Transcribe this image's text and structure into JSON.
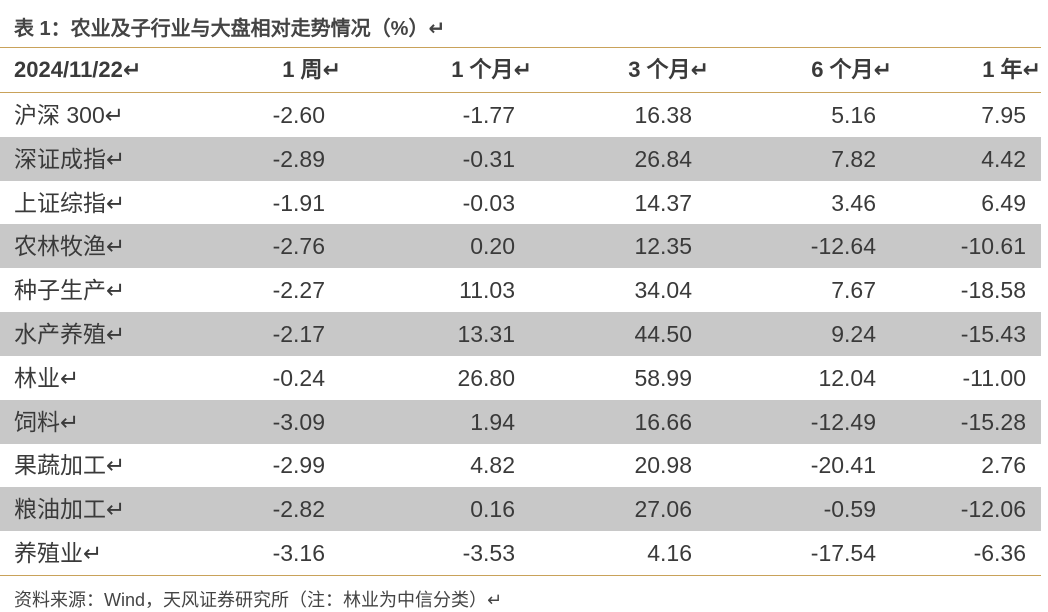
{
  "title": "表 1：农业及子行业与大盘相对走势情况（%）↵",
  "table": {
    "header": [
      "2024/11/22↵",
      "1 周↵",
      "1 个月↵",
      "3 个月↵",
      "6 个月↵",
      "1 年↵"
    ],
    "rows": [
      [
        "沪深 300↵",
        "-2.60",
        "-1.77",
        "16.38",
        "5.16",
        "7.95"
      ],
      [
        "深证成指↵",
        "-2.89",
        "-0.31",
        "26.84",
        "7.82",
        "4.42"
      ],
      [
        "上证综指↵",
        "-1.91",
        "-0.03",
        "14.37",
        "3.46",
        "6.49"
      ],
      [
        "农林牧渔↵",
        "-2.76",
        "0.20",
        "12.35",
        "-12.64",
        "-10.61"
      ],
      [
        "种子生产↵",
        "-2.27",
        "11.03",
        "34.04",
        "7.67",
        "-18.58"
      ],
      [
        "水产养殖↵",
        "-2.17",
        "13.31",
        "44.50",
        "9.24",
        "-15.43"
      ],
      [
        "林业↵",
        "-0.24",
        "26.80",
        "58.99",
        "12.04",
        "-11.00"
      ],
      [
        "饲料↵",
        "-3.09",
        "1.94",
        "16.66",
        "-12.49",
        "-15.28"
      ],
      [
        "果蔬加工↵",
        "-2.99",
        "4.82",
        "20.98",
        "-20.41",
        "2.76"
      ],
      [
        "粮油加工↵",
        "-2.82",
        "0.16",
        "27.06",
        "-0.59",
        "-12.06"
      ],
      [
        "养殖业↵",
        "-3.16",
        "-3.53",
        "4.16",
        "-17.54",
        "-6.36"
      ]
    ]
  },
  "footer": "资料来源：Wind，天风证券研究所（注：林业为中信分类）↵"
}
